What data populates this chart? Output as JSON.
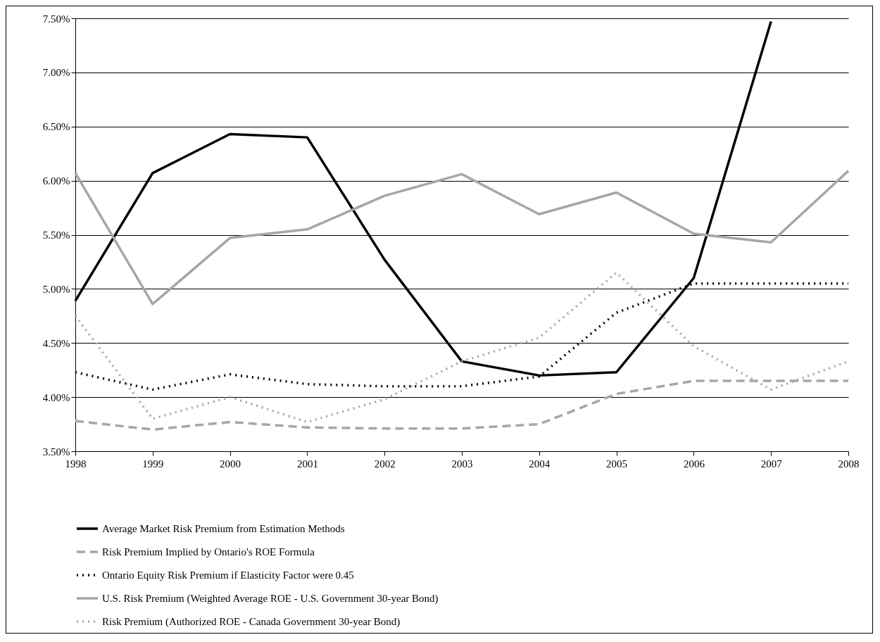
{
  "chart_data": {
    "type": "line",
    "categories": [
      "1998",
      "1999",
      "2000",
      "2001",
      "2002",
      "2003",
      "2004",
      "2005",
      "2006",
      "2007",
      "2008"
    ],
    "ylim": [
      3.5,
      7.5
    ],
    "yticks": [
      {
        "value": 3.5,
        "label": "3.50%"
      },
      {
        "value": 4.0,
        "label": "4.00%"
      },
      {
        "value": 4.5,
        "label": "4.50%"
      },
      {
        "value": 5.0,
        "label": "5.00%"
      },
      {
        "value": 5.5,
        "label": "5.50%"
      },
      {
        "value": 6.0,
        "label": "6.00%"
      },
      {
        "value": 6.5,
        "label": "6.50%"
      },
      {
        "value": 7.0,
        "label": "7.00%"
      },
      {
        "value": 7.5,
        "label": "7.50%"
      }
    ],
    "grid": "y",
    "legend": "bottom",
    "marker": "none",
    "series": [
      {
        "name": "Average Market Risk Premium from Estimation Methods",
        "color": "#000000",
        "line_style": "solid",
        "values": [
          4.89,
          6.07,
          6.43,
          6.4,
          5.27,
          4.33,
          4.2,
          4.23,
          5.1,
          7.47,
          null
        ]
      },
      {
        "name": "Risk Premium Implied by Ontario's ROE Formula",
        "color": "#a6a6a6",
        "line_style": "dashed",
        "values": [
          3.78,
          3.7,
          3.77,
          3.72,
          3.71,
          3.71,
          3.75,
          4.03,
          4.15,
          4.15,
          4.15
        ]
      },
      {
        "name": "Ontario Equity Risk Premium if Elasticity Factor were 0.45",
        "color": "#000000",
        "line_style": "dotted",
        "values": [
          4.23,
          4.07,
          4.21,
          4.12,
          4.1,
          4.1,
          4.19,
          4.78,
          5.05,
          5.05,
          5.05
        ]
      },
      {
        "name": "U.S. Risk Premium (Weighted Average ROE - U.S. Government 30-year Bond)",
        "color": "#a6a6a6",
        "line_style": "solid",
        "values": [
          6.07,
          4.86,
          5.47,
          5.55,
          5.86,
          6.06,
          5.69,
          5.89,
          5.51,
          5.43,
          6.09
        ]
      },
      {
        "name": "Risk Premium (Authorized ROE - Canada Government 30-year Bond)",
        "color": "#a6a6a6",
        "line_style": "dotted",
        "values": [
          4.75,
          3.8,
          4.0,
          3.77,
          3.98,
          4.33,
          4.55,
          5.15,
          4.47,
          4.07,
          4.33
        ]
      }
    ]
  }
}
